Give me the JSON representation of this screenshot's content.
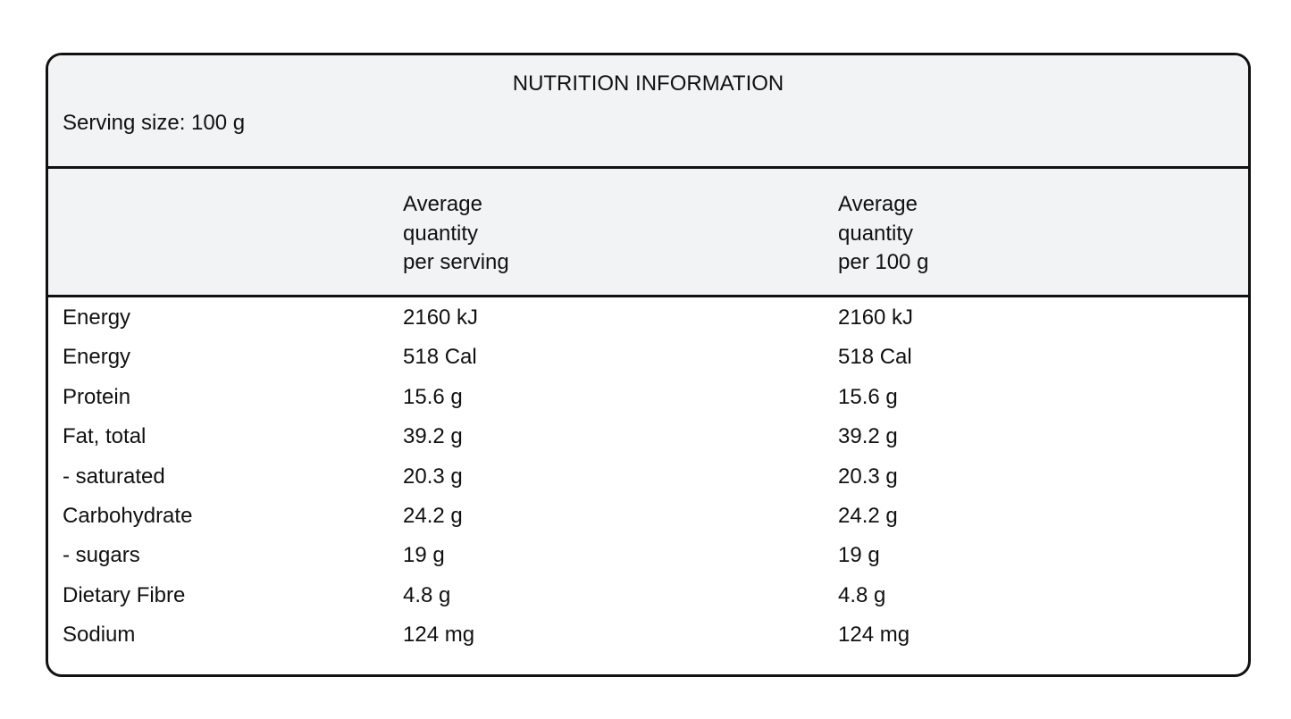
{
  "panel": {
    "title": "NUTRITION INFORMATION",
    "serving_size": "Serving size: 100 g"
  },
  "columns": [
    "Average\nquantity\nper serving",
    "Average\nquantity\nper 100 g"
  ],
  "rows": [
    {
      "name": "Energy",
      "per_serving": "2160 kJ",
      "per_100g": "2160 kJ"
    },
    {
      "name": "Energy",
      "per_serving": "518 Cal",
      "per_100g": "518 Cal"
    },
    {
      "name": "Protein",
      "per_serving": "15.6 g",
      "per_100g": "15.6 g"
    },
    {
      "name": "Fat, total",
      "per_serving": "39.2 g",
      "per_100g": "39.2 g"
    },
    {
      "name": "- saturated",
      "per_serving": "20.3 g",
      "per_100g": "20.3 g"
    },
    {
      "name": "Carbohydrate",
      "per_serving": "24.2 g",
      "per_100g": "24.2 g"
    },
    {
      "name": "- sugars",
      "per_serving": "19 g",
      "per_100g": "19 g"
    },
    {
      "name": "Dietary Fibre",
      "per_serving": "4.8 g",
      "per_100g": "4.8 g"
    },
    {
      "name": "Sodium",
      "per_serving": "124 mg",
      "per_100g": "124 mg"
    }
  ]
}
